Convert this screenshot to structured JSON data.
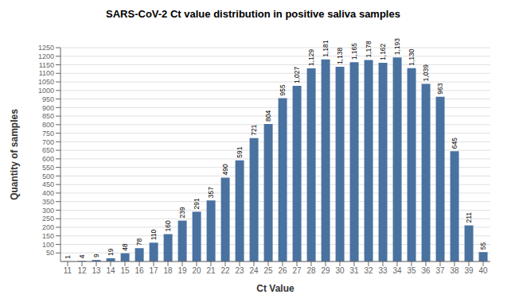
{
  "chart_data": {
    "type": "bar",
    "title": "SARS-CoV-2 Ct value distribution in positive saliva samples",
    "x_label": "Ct Value",
    "y_label": "Quantity of samples",
    "categories": [
      11,
      12,
      13,
      14,
      15,
      16,
      17,
      18,
      19,
      20,
      21,
      22,
      23,
      24,
      25,
      26,
      27,
      28,
      29,
      30,
      31,
      32,
      33,
      34,
      35,
      36,
      37,
      38,
      39,
      40
    ],
    "values": [
      1,
      4,
      9,
      19,
      48,
      78,
      110,
      160,
      239,
      291,
      357,
      490,
      591,
      721,
      804,
      955,
      1027,
      1129,
      1181,
      1138,
      1165,
      1178,
      1162,
      1193,
      1130,
      1039,
      963,
      645,
      211,
      55
    ],
    "value_labels": [
      "1",
      "4",
      "9",
      "19",
      "48",
      "78",
      "110",
      "160",
      "239",
      "291",
      "357",
      "490",
      "591",
      "721",
      "804",
      "955",
      "1,027",
      "1,129",
      "1,181",
      "1,138",
      "1,165",
      "1,178",
      "1,162",
      "1,193",
      "1,130",
      "1,039",
      "963",
      "645",
      "211",
      "55"
    ],
    "data_labels": true,
    "color": "#4a72a0",
    "ylim": [
      0,
      1250
    ],
    "yticks": [
      50,
      100,
      150,
      200,
      250,
      300,
      350,
      400,
      450,
      500,
      550,
      600,
      650,
      700,
      750,
      800,
      850,
      900,
      950,
      1000,
      1050,
      1100,
      1150,
      1200,
      1250
    ],
    "grid": true
  }
}
